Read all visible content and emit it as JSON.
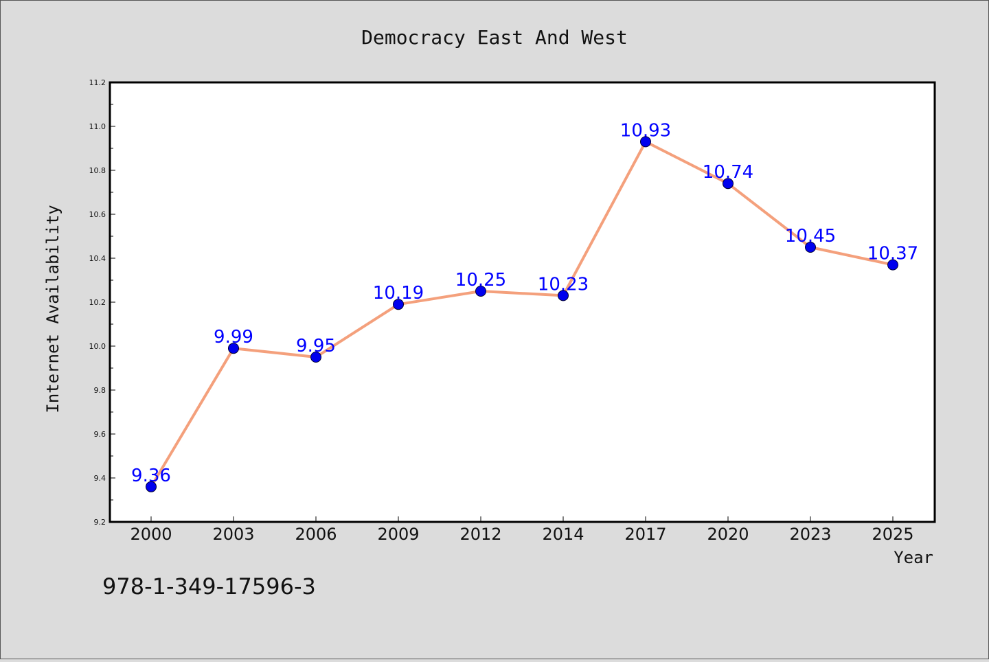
{
  "chart_data": {
    "type": "line",
    "title": "Democracy East And West",
    "xlabel": "Year",
    "ylabel": "Internet Availability",
    "categories": [
      "2000",
      "2003",
      "2006",
      "2009",
      "2012",
      "2014",
      "2017",
      "2020",
      "2023",
      "2025"
    ],
    "series": [
      {
        "values": [
          9.36,
          9.99,
          9.95,
          10.19,
          10.25,
          10.23,
          10.93,
          10.74,
          10.45,
          10.37
        ],
        "labels": [
          "9.36",
          "9.99",
          "9.95",
          "10.19",
          "10.25",
          "10.23",
          "10.93",
          "10.74",
          "10.45",
          "10.37"
        ],
        "line_color": "#f4a07c",
        "marker_color": "#0000ee",
        "label_color": "#0000ff"
      }
    ],
    "ylim": [
      9.2,
      11.2
    ],
    "yticks": [
      "9.2",
      "9.4",
      "9.6",
      "9.8",
      "10.0",
      "10.2",
      "10.4",
      "10.6",
      "10.8",
      "11.0",
      "11.2"
    ],
    "grid": false,
    "legend": "none"
  },
  "footnote": "978-1-349-17596-3",
  "colors": {
    "background": "#dcdcdc",
    "plot_area": "#ffffff",
    "axes": "#000000"
  }
}
